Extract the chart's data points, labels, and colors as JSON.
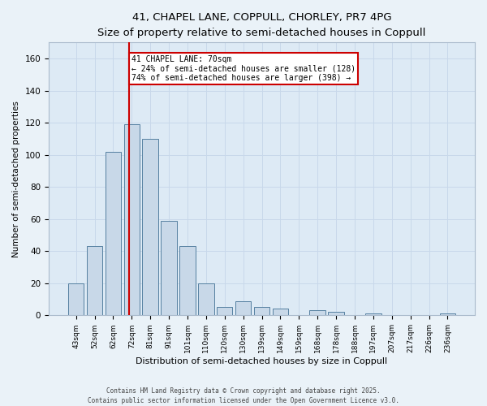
{
  "title_line1": "41, CHAPEL LANE, COPPULL, CHORLEY, PR7 4PG",
  "title_line2": "Size of property relative to semi-detached houses in Coppull",
  "categories": [
    "43sqm",
    "52sqm",
    "62sqm",
    "72sqm",
    "81sqm",
    "91sqm",
    "101sqm",
    "110sqm",
    "120sqm",
    "130sqm",
    "139sqm",
    "149sqm",
    "159sqm",
    "168sqm",
    "178sqm",
    "188sqm",
    "197sqm",
    "207sqm",
    "217sqm",
    "226sqm",
    "236sqm"
  ],
  "values": [
    20,
    43,
    102,
    119,
    110,
    59,
    43,
    20,
    5,
    9,
    5,
    4,
    0,
    3,
    2,
    0,
    1,
    0,
    0,
    0,
    1
  ],
  "bar_color": "#c8d8e8",
  "bar_edge_color": "#5580a0",
  "annotation_text_line1": "41 CHAPEL LANE: 70sqm",
  "annotation_text_line2": "← 24% of semi-detached houses are smaller (128)",
  "annotation_text_line3": "74% of semi-detached houses are larger (398) →",
  "annotation_box_facecolor": "#ffffff",
  "annotation_box_edgecolor": "#cc0000",
  "vline_color": "#cc0000",
  "vline_x_index": 2.85,
  "xlabel": "Distribution of semi-detached houses by size in Coppull",
  "ylabel": "Number of semi-detached properties",
  "ylim": [
    0,
    170
  ],
  "yticks": [
    0,
    20,
    40,
    60,
    80,
    100,
    120,
    140,
    160
  ],
  "grid_color": "#c8d8ea",
  "plot_bg_color": "#ddeaf5",
  "fig_bg_color": "#eaf2f8",
  "footer_line1": "Contains HM Land Registry data © Crown copyright and database right 2025.",
  "footer_line2": "Contains public sector information licensed under the Open Government Licence v3.0."
}
